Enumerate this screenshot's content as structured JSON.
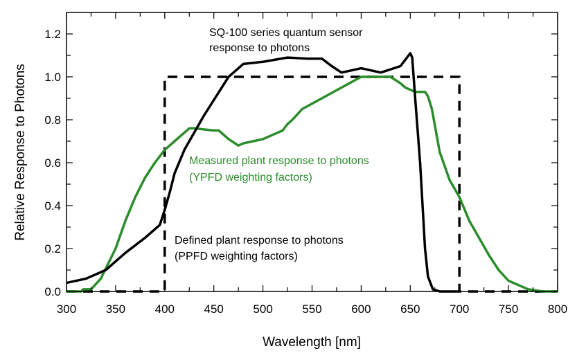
{
  "chart_data": {
    "type": "line",
    "xlabel": "Wavelength [nm]",
    "ylabel": "Relative Response to Photons",
    "xlim": [
      300,
      800
    ],
    "ylim": [
      0,
      1.3
    ],
    "xticks": [
      300,
      350,
      400,
      450,
      500,
      550,
      600,
      650,
      700,
      750,
      800
    ],
    "yticks": [
      0.0,
      0.2,
      0.4,
      0.6,
      0.8,
      1.0,
      1.2
    ],
    "grid": false,
    "series": [
      {
        "name": "SQ-100 series quantum sensor response to photons",
        "color": "#000000",
        "style": "solid",
        "x": [
          300,
          320,
          340,
          360,
          380,
          395,
          400,
          405,
          410,
          420,
          440,
          465,
          480,
          500,
          525,
          545,
          560,
          570,
          580,
          600,
          620,
          640,
          650,
          652,
          655,
          660,
          665,
          668,
          673,
          680,
          700
        ],
        "y": [
          0.04,
          0.06,
          0.1,
          0.18,
          0.25,
          0.31,
          0.38,
          0.46,
          0.55,
          0.66,
          0.82,
          1.0,
          1.06,
          1.07,
          1.09,
          1.085,
          1.085,
          1.05,
          1.02,
          1.04,
          1.02,
          1.05,
          1.11,
          1.09,
          0.9,
          0.6,
          0.2,
          0.07,
          0.01,
          0.0,
          0.0
        ]
      },
      {
        "name": "Measured plant response to photons (YPFD weighting factors)",
        "color": "#2a8c2a",
        "style": "solid",
        "x": [
          300,
          315,
          317,
          325,
          335,
          350,
          360,
          370,
          380,
          390,
          400,
          410,
          420,
          425,
          430,
          450,
          455,
          465,
          475,
          480,
          490,
          500,
          510,
          520,
          525,
          530,
          540,
          560,
          580,
          600,
          610,
          630,
          640,
          645,
          655,
          665,
          668,
          672,
          680,
          690,
          700,
          710,
          720,
          730,
          740,
          750,
          760,
          770,
          785,
          800
        ],
        "y": [
          0,
          0,
          0.01,
          0.01,
          0.06,
          0.2,
          0.33,
          0.44,
          0.53,
          0.6,
          0.66,
          0.7,
          0.74,
          0.76,
          0.76,
          0.75,
          0.75,
          0.71,
          0.68,
          0.69,
          0.7,
          0.71,
          0.73,
          0.75,
          0.78,
          0.8,
          0.85,
          0.9,
          0.95,
          1.0,
          1.0,
          1.0,
          0.97,
          0.95,
          0.93,
          0.93,
          0.91,
          0.85,
          0.65,
          0.52,
          0.44,
          0.33,
          0.25,
          0.17,
          0.1,
          0.05,
          0.03,
          0.01,
          0,
          0
        ]
      },
      {
        "name": "Defined plant response to photons (PPFD weighting factors)",
        "color": "#000000",
        "style": "dashed",
        "x": [
          300,
          400,
          400,
          700,
          700,
          800
        ],
        "y": [
          0,
          0,
          1,
          1,
          0,
          0
        ]
      }
    ],
    "annotations": [
      {
        "lines": [
          "SQ-100 series quantum sensor",
          "response to photons"
        ],
        "color": "#000000"
      },
      {
        "lines": [
          "Measured plant response to photons",
          "(YPFD weighting factors)"
        ],
        "color": "#2a8c2a"
      },
      {
        "lines": [
          "Defined plant response to photons",
          "(PPFD weighting factors)"
        ],
        "color": "#000000"
      }
    ]
  }
}
